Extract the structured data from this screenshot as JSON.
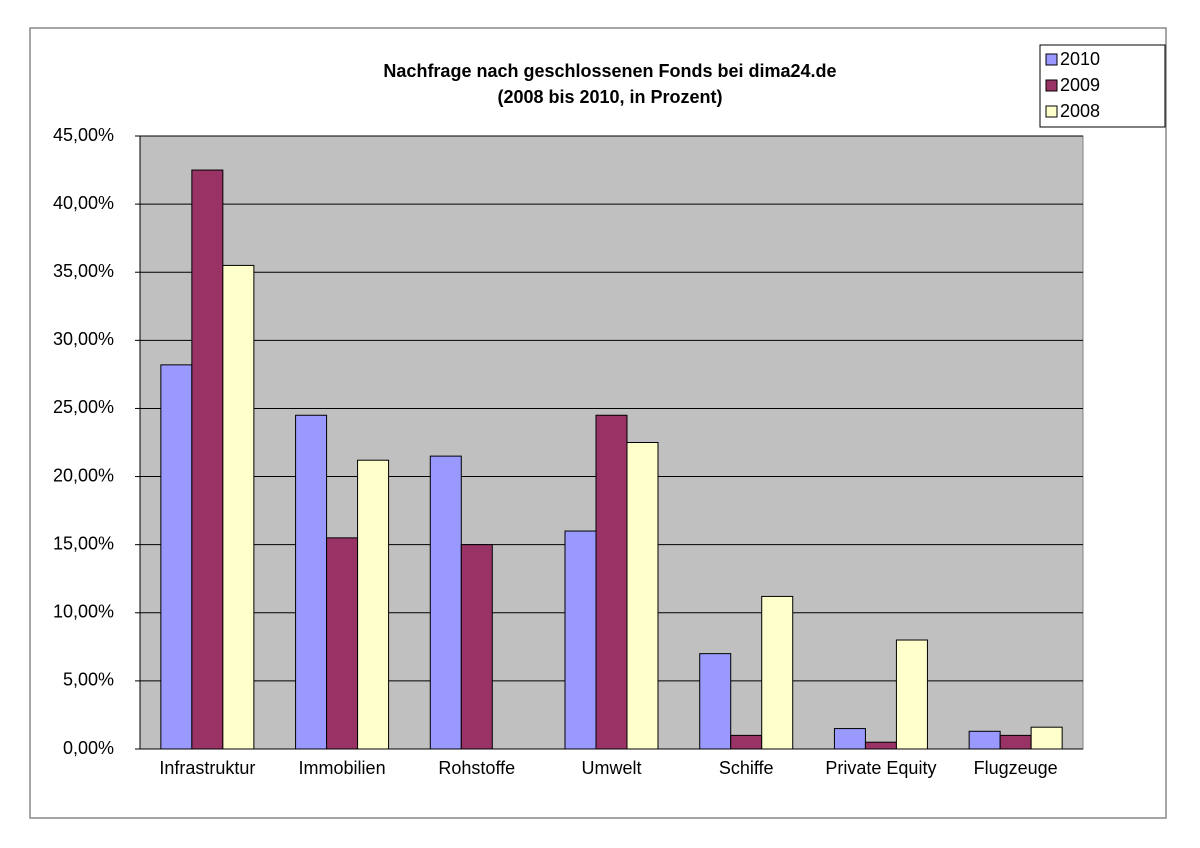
{
  "chart_data": {
    "type": "bar",
    "title": "Nachfrage nach geschlossenen Fonds bei dima24.de",
    "subtitle": "(2008 bis 2010, in Prozent)",
    "categories": [
      "Infrastruktur",
      "Immobilien",
      "Rohstoffe",
      "Umwelt",
      "Schiffe",
      "Private Equity",
      "Flugzeuge"
    ],
    "series": [
      {
        "name": "2010",
        "color": "#9999ff",
        "values": [
          28.2,
          24.5,
          21.5,
          16.0,
          7.0,
          1.5,
          1.3
        ]
      },
      {
        "name": "2009",
        "color": "#993366",
        "values": [
          42.5,
          15.5,
          15.0,
          24.5,
          1.0,
          0.5,
          1.0
        ]
      },
      {
        "name": "2008",
        "color": "#ffffcc",
        "values": [
          35.5,
          21.2,
          null,
          22.5,
          11.2,
          8.0,
          1.6
        ]
      }
    ],
    "ylim": [
      0,
      45
    ],
    "yticks": [
      {
        "value": 0,
        "label": "0,00%"
      },
      {
        "value": 5,
        "label": "5,00%"
      },
      {
        "value": 10,
        "label": "10,00%"
      },
      {
        "value": 15,
        "label": "15,00%"
      },
      {
        "value": 20,
        "label": "20,00%"
      },
      {
        "value": 25,
        "label": "25,00%"
      },
      {
        "value": 30,
        "label": "30,00%"
      },
      {
        "value": 35,
        "label": "35,00%"
      },
      {
        "value": 40,
        "label": "40,00%"
      },
      {
        "value": 45,
        "label": "45,00%"
      }
    ],
    "grid": true,
    "legend": "top-right"
  }
}
